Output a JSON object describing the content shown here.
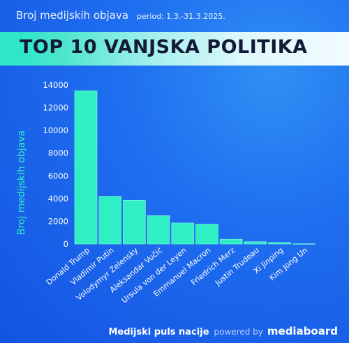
{
  "header": {
    "title": "Broj medijskih objava",
    "period": "period: 1.3.-31.3.2025."
  },
  "banner": {
    "title": "TOP 10 VANJSKA POLITIKA"
  },
  "footer": {
    "label": "Medijski puls nacije",
    "powered_by": "powered by",
    "brand": "mediaboard"
  },
  "colors": {
    "bar": "#2ff0c4",
    "bar_edge": "#8ff9e3",
    "ylabel": "#2ff0c4",
    "background": "#1f6ff0"
  },
  "chart_data": {
    "type": "bar",
    "title": "TOP 10 VANJSKA POLITIKA",
    "xlabel": "",
    "ylabel": "Broj medijskih objava",
    "ylim": [
      0,
      14000
    ],
    "yticks": [
      0,
      2000,
      4000,
      6000,
      8000,
      10000,
      12000,
      14000
    ],
    "grid": false,
    "categories": [
      "Donald Trump",
      "Vladimir Putin",
      "Volodymyr Zelensky",
      "Aleksandar Vučić",
      "Ursula von der Leyen",
      "Emmanuel Macron",
      "Friedrich Merz",
      "Justin Trudeau",
      "Xi Jinping",
      "Kim Jong Un"
    ],
    "values": [
      13500,
      4200,
      3850,
      2500,
      1850,
      1750,
      420,
      200,
      130,
      30
    ]
  }
}
